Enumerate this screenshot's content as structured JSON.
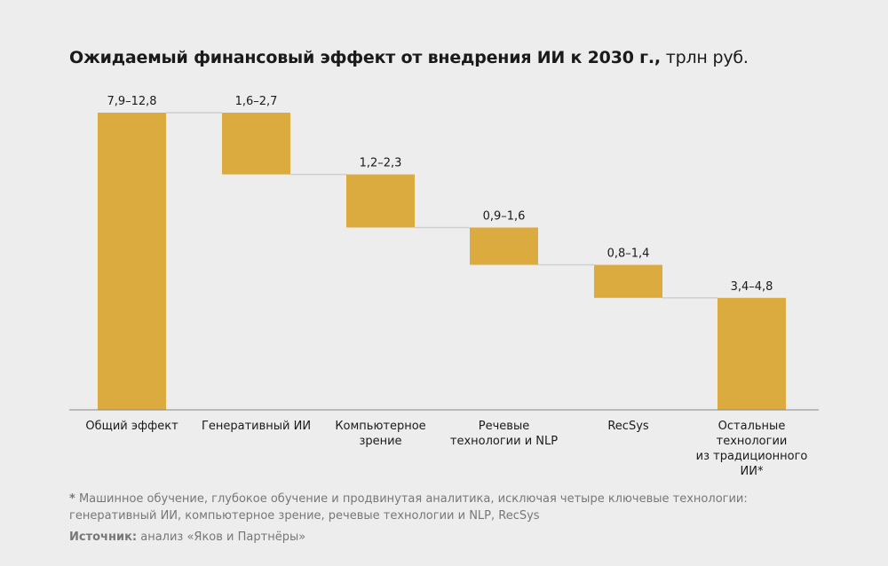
{
  "title": {
    "bold": "Ожидаемый финансовый эффект от внедрения ИИ к 2030 г.,",
    "unit": " трлн руб."
  },
  "colors": {
    "bar": "#dcab40",
    "connector": "#cfcfcf",
    "axis": "#888888",
    "background": "#ededed"
  },
  "chart_data": {
    "type": "waterfall",
    "title": "Ожидаемый финансовый эффект от внедрения ИИ к 2030 г., трлн руб.",
    "categories": [
      "Общий эффект",
      "Генеративный ИИ",
      "Компьютерное зрение",
      "Речевые технологии и NLP",
      "RecSys",
      "Остальные технологии из традиционного ИИ*"
    ],
    "category_lines": [
      [
        "Общий эффект"
      ],
      [
        "Генеративный ИИ"
      ],
      [
        "Компьютерное",
        "зрение"
      ],
      [
        "Речевые",
        "технологии и NLP"
      ],
      [
        "RecSys"
      ],
      [
        "Остальные",
        "технологии",
        "из традиционного",
        "ИИ*"
      ]
    ],
    "data_labels": [
      "7,9–12,8",
      "1,6–2,7",
      "1,2–2,3",
      "0,9–1,6",
      "0,8–1,4",
      "3,4–4,8"
    ],
    "values": [
      10.35,
      2.15,
      1.85,
      1.3,
      1.15,
      3.9
    ],
    "ylim": [
      0,
      10.35
    ],
    "grid": false
  },
  "footnote": {
    "marker": "*",
    "text": " Машинное обучение, глубокое обучение и продвинутая аналитика, исключая четыре ключевые технологии: генеративный ИИ, компьютерное зрение, речевые технологии и NLP, RecSys"
  },
  "source": {
    "label": "Источник:",
    "text": " анализ «Яков и Партнёры»"
  }
}
